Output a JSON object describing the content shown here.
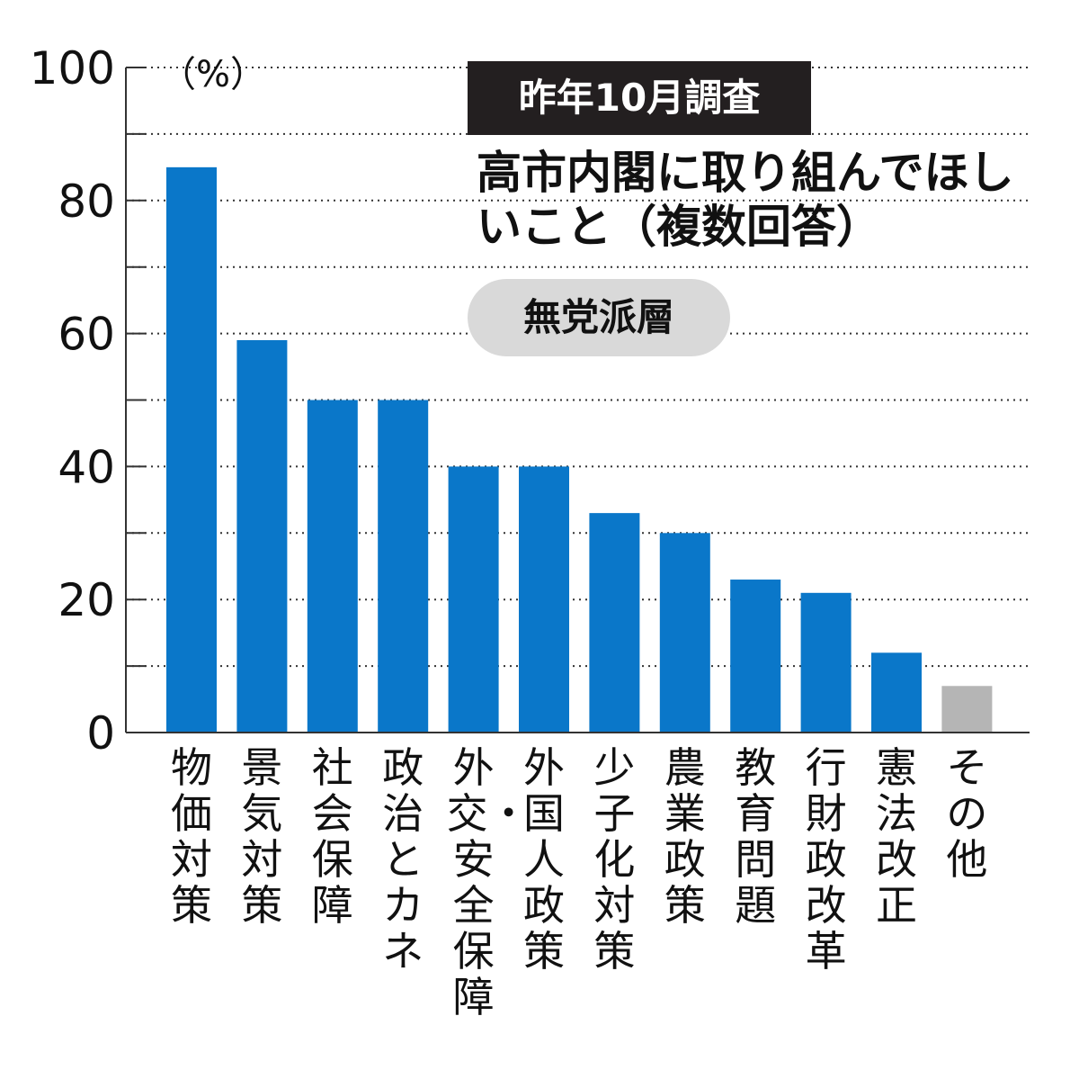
{
  "header": {
    "tag": "昨年10月調査",
    "title": "高市内閣に取り組んでほしいこと（複数回答）",
    "subgroup": "無党派層"
  },
  "chart_data": {
    "type": "bar",
    "unit_label": "（%）",
    "categories": [
      "物価対策",
      "景気対策",
      "社会保障",
      "政治とカネ",
      "外交・安全保障",
      "外国人政策",
      "少子化対策",
      "農業政策",
      "教育問題",
      "行財政改革",
      "憲法改正",
      "その他"
    ],
    "values": [
      85,
      59,
      50,
      50,
      40,
      40,
      33,
      30,
      23,
      21,
      12,
      7
    ],
    "ylim": [
      0,
      100
    ],
    "yticks": [
      0,
      20,
      40,
      60,
      80,
      100
    ],
    "grid_every": 10,
    "grid": true,
    "colors": {
      "bar": "#0a77c9",
      "other_bar": "#b5b5b5",
      "grid": "#333333",
      "axis": "#333333"
    }
  }
}
